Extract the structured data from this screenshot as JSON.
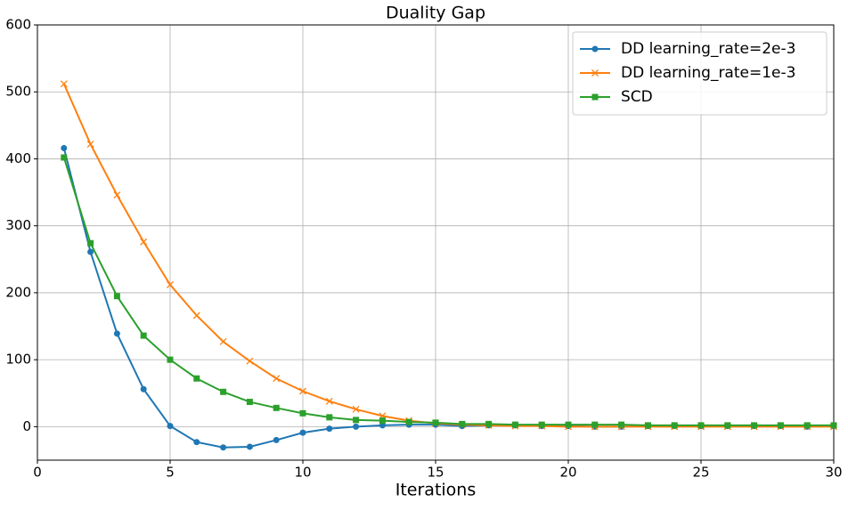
{
  "chart_data": {
    "type": "line",
    "title": "Duality Gap",
    "xlabel": "Iterations",
    "x": [
      1,
      2,
      3,
      4,
      5,
      6,
      7,
      8,
      9,
      10,
      11,
      12,
      13,
      14,
      15,
      16,
      17,
      18,
      19,
      20,
      21,
      22,
      23,
      24,
      25,
      26,
      27,
      28,
      29,
      30
    ],
    "series": [
      {
        "name": "DD learning_rate=2e-3",
        "color": "#1f77b4",
        "marker": "circle",
        "values": [
          416,
          261,
          139,
          56,
          1,
          -23,
          -31,
          -30,
          -20,
          -9,
          -3,
          0,
          2,
          3,
          3,
          1,
          2,
          2,
          1,
          1,
          0,
          0,
          1,
          1,
          1,
          1,
          1,
          1,
          0,
          1
        ]
      },
      {
        "name": "DD learning_rate=1e-3",
        "color": "#ff7f0e",
        "marker": "x",
        "values": [
          512,
          422,
          346,
          276,
          212,
          166,
          127,
          98,
          72,
          53,
          38,
          26,
          16,
          9,
          5,
          3,
          2,
          1,
          1,
          0,
          0,
          0,
          0,
          0,
          0,
          0,
          0,
          0,
          0,
          0
        ]
      },
      {
        "name": "SCD",
        "color": "#2ca02c",
        "marker": "square",
        "values": [
          402,
          274,
          195,
          136,
          100,
          72,
          52,
          37,
          28,
          20,
          14,
          10,
          9,
          7,
          6,
          4,
          4,
          3,
          3,
          3,
          3,
          3,
          2,
          2,
          2,
          2,
          2,
          2,
          2,
          2
        ]
      }
    ],
    "xlim": [
      0,
      30
    ],
    "xticks": [
      0,
      5,
      10,
      15,
      20,
      25,
      30
    ],
    "ylim": [
      -50,
      600
    ],
    "yticks": [
      0,
      100,
      200,
      300,
      400,
      500,
      600
    ],
    "grid": true,
    "legend": "upper right"
  }
}
